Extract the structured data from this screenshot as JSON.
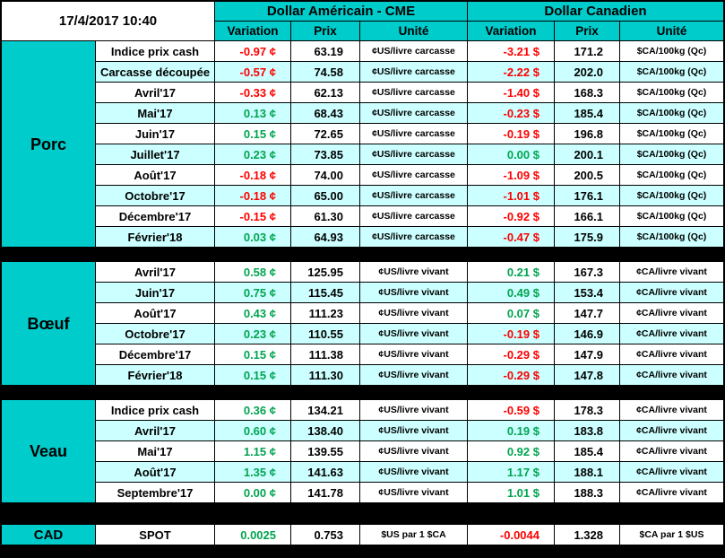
{
  "meta": {
    "timestamp": "17/4/2017 10:40"
  },
  "colors": {
    "accent_cyan": "#00CCCC",
    "stripe": "#CCFFFF",
    "positive": "#00A550",
    "negative": "#FF0000"
  },
  "header": {
    "usd_title": "Dollar Américain - CME",
    "cad_title": "Dollar Canadien",
    "columns": {
      "variation": "Variation",
      "prix": "Prix",
      "unite": "Unité"
    }
  },
  "sections": [
    {
      "name": "Porc",
      "rows": [
        {
          "label": "Indice prix cash",
          "us": {
            "variation": "-0.97 ¢",
            "trend": "down",
            "prix": "63.19",
            "unite": "¢US/livre carcasse"
          },
          "ca": {
            "variation": "-3.21 $",
            "trend": "down",
            "prix": "171.2",
            "unite": "$CA/100kg (Qc)"
          }
        },
        {
          "label": "Carcasse découpée",
          "us": {
            "variation": "-0.57 ¢",
            "trend": "down",
            "prix": "74.58",
            "unite": "¢US/livre carcasse"
          },
          "ca": {
            "variation": "-2.22 $",
            "trend": "down",
            "prix": "202.0",
            "unite": "$CA/100kg (Qc)"
          }
        },
        {
          "label": "Avril'17",
          "us": {
            "variation": "-0.33 ¢",
            "trend": "down",
            "prix": "62.13",
            "unite": "¢US/livre carcasse"
          },
          "ca": {
            "variation": "-1.40 $",
            "trend": "down",
            "prix": "168.3",
            "unite": "$CA/100kg (Qc)"
          }
        },
        {
          "label": "Mai'17",
          "us": {
            "variation": "0.13 ¢",
            "trend": "up",
            "prix": "68.43",
            "unite": "¢US/livre carcasse"
          },
          "ca": {
            "variation": "-0.23 $",
            "trend": "down",
            "prix": "185.4",
            "unite": "$CA/100kg (Qc)"
          }
        },
        {
          "label": "Juin'17",
          "us": {
            "variation": "0.15 ¢",
            "trend": "up",
            "prix": "72.65",
            "unite": "¢US/livre carcasse"
          },
          "ca": {
            "variation": "-0.19 $",
            "trend": "down",
            "prix": "196.8",
            "unite": "$CA/100kg (Qc)"
          }
        },
        {
          "label": "Juillet'17",
          "us": {
            "variation": "0.23 ¢",
            "trend": "up",
            "prix": "73.85",
            "unite": "¢US/livre carcasse"
          },
          "ca": {
            "variation": "0.00 $",
            "trend": "up",
            "prix": "200.1",
            "unite": "$CA/100kg (Qc)"
          }
        },
        {
          "label": "Août'17",
          "us": {
            "variation": "-0.18 ¢",
            "trend": "down",
            "prix": "74.00",
            "unite": "¢US/livre carcasse"
          },
          "ca": {
            "variation": "-1.09 $",
            "trend": "down",
            "prix": "200.5",
            "unite": "$CA/100kg (Qc)"
          }
        },
        {
          "label": "Octobre'17",
          "us": {
            "variation": "-0.18 ¢",
            "trend": "down",
            "prix": "65.00",
            "unite": "¢US/livre carcasse"
          },
          "ca": {
            "variation": "-1.01 $",
            "trend": "down",
            "prix": "176.1",
            "unite": "$CA/100kg (Qc)"
          }
        },
        {
          "label": "Décembre'17",
          "us": {
            "variation": "-0.15 ¢",
            "trend": "down",
            "prix": "61.30",
            "unite": "¢US/livre carcasse"
          },
          "ca": {
            "variation": "-0.92 $",
            "trend": "down",
            "prix": "166.1",
            "unite": "$CA/100kg (Qc)"
          }
        },
        {
          "label": "Février'18",
          "us": {
            "variation": "0.03 ¢",
            "trend": "up",
            "prix": "64.93",
            "unite": "¢US/livre carcasse"
          },
          "ca": {
            "variation": "-0.47 $",
            "trend": "down",
            "prix": "175.9",
            "unite": "$CA/100kg (Qc)"
          }
        }
      ]
    },
    {
      "name": "Bœuf",
      "rows": [
        {
          "label": "Avril'17",
          "us": {
            "variation": "0.58 ¢",
            "trend": "up",
            "prix": "125.95",
            "unite": "¢US/livre vivant"
          },
          "ca": {
            "variation": "0.21 $",
            "trend": "up",
            "prix": "167.3",
            "unite": "¢CA/livre vivant"
          }
        },
        {
          "label": "Juin'17",
          "us": {
            "variation": "0.75 ¢",
            "trend": "up",
            "prix": "115.45",
            "unite": "¢US/livre vivant"
          },
          "ca": {
            "variation": "0.49 $",
            "trend": "up",
            "prix": "153.4",
            "unite": "¢CA/livre vivant"
          }
        },
        {
          "label": "Août'17",
          "us": {
            "variation": "0.43 ¢",
            "trend": "up",
            "prix": "111.23",
            "unite": "¢US/livre vivant"
          },
          "ca": {
            "variation": "0.07 $",
            "trend": "up",
            "prix": "147.7",
            "unite": "¢CA/livre vivant"
          }
        },
        {
          "label": "Octobre'17",
          "us": {
            "variation": "0.23 ¢",
            "trend": "up",
            "prix": "110.55",
            "unite": "¢US/livre vivant"
          },
          "ca": {
            "variation": "-0.19 $",
            "trend": "down",
            "prix": "146.9",
            "unite": "¢CA/livre vivant"
          }
        },
        {
          "label": "Décembre'17",
          "us": {
            "variation": "0.15 ¢",
            "trend": "up",
            "prix": "111.38",
            "unite": "¢US/livre vivant"
          },
          "ca": {
            "variation": "-0.29 $",
            "trend": "down",
            "prix": "147.9",
            "unite": "¢CA/livre vivant"
          }
        },
        {
          "label": "Février'18",
          "us": {
            "variation": "0.15 ¢",
            "trend": "up",
            "prix": "111.30",
            "unite": "¢US/livre vivant"
          },
          "ca": {
            "variation": "-0.29 $",
            "trend": "down",
            "prix": "147.8",
            "unite": "¢CA/livre vivant"
          }
        }
      ]
    },
    {
      "name": "Veau",
      "rows": [
        {
          "label": "Indice prix cash",
          "us": {
            "variation": "0.36 ¢",
            "trend": "up",
            "prix": "134.21",
            "unite": "¢US/livre vivant"
          },
          "ca": {
            "variation": "-0.59 $",
            "trend": "down",
            "prix": "178.3",
            "unite": "¢CA/livre vivant"
          }
        },
        {
          "label": "Avril'17",
          "us": {
            "variation": "0.60 ¢",
            "trend": "up",
            "prix": "138.40",
            "unite": "¢US/livre vivant"
          },
          "ca": {
            "variation": "0.19 $",
            "trend": "up",
            "prix": "183.8",
            "unite": "¢CA/livre vivant"
          }
        },
        {
          "label": "Mai'17",
          "us": {
            "variation": "1.15 ¢",
            "trend": "up",
            "prix": "139.55",
            "unite": "¢US/livre vivant"
          },
          "ca": {
            "variation": "0.92 $",
            "trend": "up",
            "prix": "185.4",
            "unite": "¢CA/livre vivant"
          }
        },
        {
          "label": "Août'17",
          "us": {
            "variation": "1.35 ¢",
            "trend": "up",
            "prix": "141.63",
            "unite": "¢US/livre vivant"
          },
          "ca": {
            "variation": "1.17 $",
            "trend": "up",
            "prix": "188.1",
            "unite": "¢CA/livre vivant"
          }
        },
        {
          "label": "Septembre'17",
          "us": {
            "variation": "0.00 ¢",
            "trend": "up",
            "prix": "141.78",
            "unite": "¢US/livre vivant"
          },
          "ca": {
            "variation": "1.01 $",
            "trend": "up",
            "prix": "188.3",
            "unite": "¢CA/livre vivant"
          }
        }
      ]
    },
    {
      "name": "CAD",
      "rows": [
        {
          "label": "SPOT",
          "us": {
            "variation": "0.0025",
            "trend": "up",
            "prix": "0.753",
            "unite": "$US par 1 $CA"
          },
          "ca": {
            "variation": "-0.0044",
            "trend": "down",
            "prix": "1.328",
            "unite": "$CA par 1 $US"
          }
        }
      ]
    }
  ]
}
